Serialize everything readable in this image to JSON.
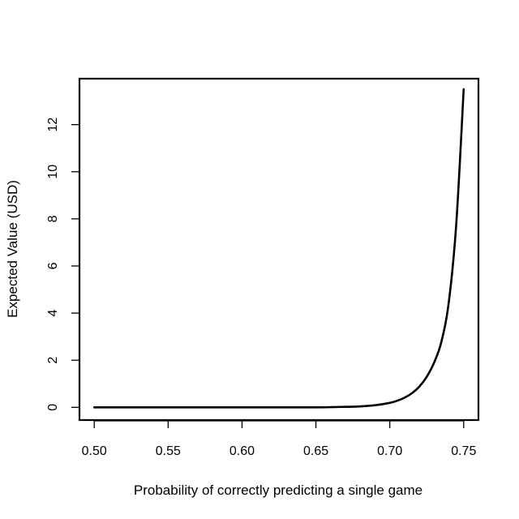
{
  "chart_data": {
    "type": "line",
    "title": "",
    "xlabel": "Probability of correctly predicting a single game",
    "ylabel": "Expected Value (USD)",
    "xlim": [
      0.49,
      0.76
    ],
    "ylim": [
      -0.54,
      13.95
    ],
    "x_ticks": [
      "0.50",
      "0.55",
      "0.60",
      "0.65",
      "0.70",
      "0.75"
    ],
    "x_tick_values": [
      0.5,
      0.55,
      0.6,
      0.65,
      0.7,
      0.75
    ],
    "y_ticks": [
      "0",
      "2",
      "4",
      "6",
      "8",
      "10",
      "12"
    ],
    "y_tick_values": [
      0,
      2,
      4,
      6,
      8,
      10,
      12
    ],
    "grid": false,
    "legend": "none",
    "line_color": "#000000",
    "series": [
      {
        "x": [
          0.5,
          0.55,
          0.6,
          0.65,
          0.66,
          0.67,
          0.68,
          0.69,
          0.7,
          0.705,
          0.71,
          0.715,
          0.72,
          0.725,
          0.73,
          0.735,
          0.74,
          0.745,
          0.75
        ],
        "y": [
          0.0,
          0.0,
          0.0,
          0.0,
          0.01,
          0.02,
          0.04,
          0.09,
          0.19,
          0.28,
          0.41,
          0.6,
          0.88,
          1.3,
          1.9,
          2.8,
          4.5,
          7.8,
          13.5
        ]
      }
    ]
  }
}
